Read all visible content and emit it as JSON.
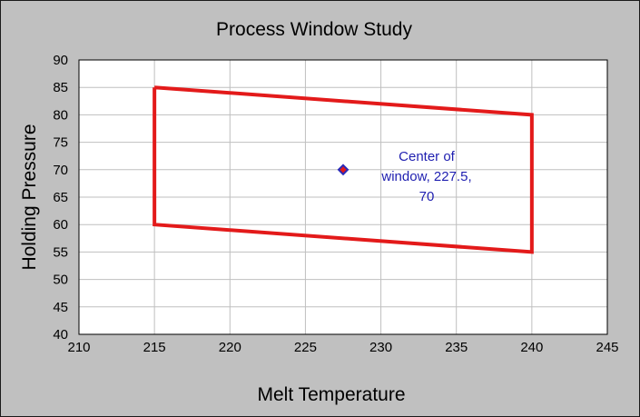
{
  "chart_data": {
    "type": "scatter",
    "title": "Process Window Study",
    "xlabel": "Melt Temperature",
    "ylabel": "Holding Pressure",
    "xlim": [
      210,
      245
    ],
    "ylim": [
      40,
      90
    ],
    "xticks": [
      210,
      215,
      220,
      225,
      230,
      235,
      240,
      245
    ],
    "yticks": [
      40,
      45,
      50,
      55,
      60,
      65,
      70,
      75,
      80,
      85,
      90
    ],
    "grid": true,
    "legend": "none",
    "series": [
      {
        "kind": "line",
        "color": "#e31a1a",
        "points": [
          {
            "x": 215,
            "y": 85
          },
          {
            "x": 240,
            "y": 80
          },
          {
            "x": 240,
            "y": 55
          },
          {
            "x": 215,
            "y": 60
          },
          {
            "x": 215,
            "y": 85
          }
        ]
      },
      {
        "kind": "marker",
        "color": "#e31a1a",
        "edge_color": "#2a2ab8",
        "points": [
          {
            "x": 227.5,
            "y": 70
          }
        ]
      }
    ],
    "annotations": [
      {
        "lines": [
          "Center of",
          "window, 227.5,",
          "70"
        ],
        "color": "#1f1fb0"
      }
    ]
  }
}
